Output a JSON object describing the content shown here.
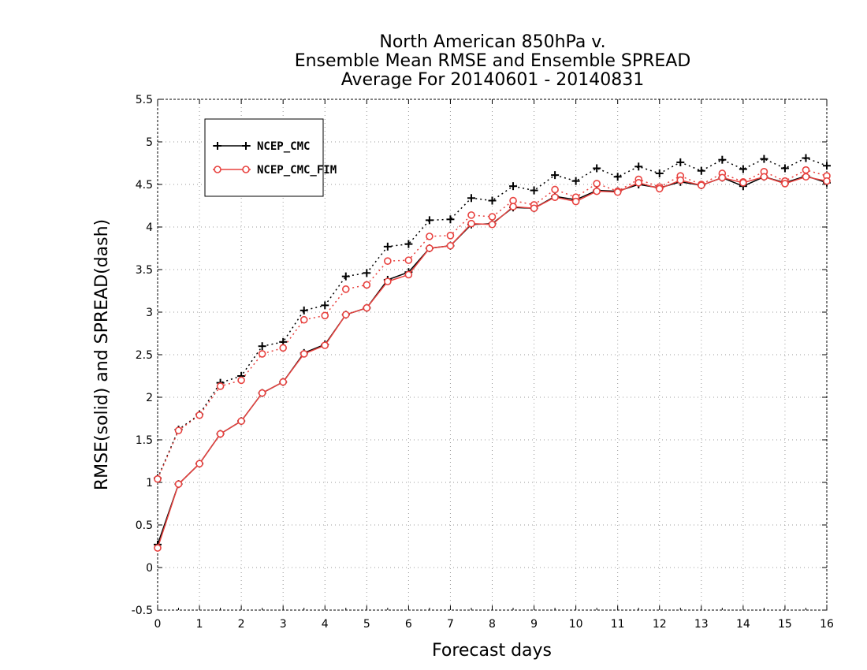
{
  "chart_data": {
    "type": "line",
    "title": [
      "North American 850hPa v.",
      "Ensemble Mean RMSE and Ensemble SPREAD",
      "Average For 20140601 - 20140831"
    ],
    "xlabel": "Forecast days",
    "ylabel": "RMSE(solid) and SPREAD(dash)",
    "xlim": [
      0,
      16
    ],
    "ylim": [
      -0.5,
      5.5
    ],
    "xticks": [
      "0",
      "1",
      "2",
      "3",
      "4",
      "5",
      "6",
      "7",
      "8",
      "9",
      "10",
      "11",
      "12",
      "13",
      "14",
      "15",
      "16"
    ],
    "yticks": [
      "-0.5",
      "0",
      "0.5",
      "1",
      "1.5",
      "2",
      "2.5",
      "3",
      "3.5",
      "4",
      "4.5",
      "5",
      "5.5"
    ],
    "ytick_values": [
      -0.5,
      0,
      0.5,
      1,
      1.5,
      2,
      2.5,
      3,
      3.5,
      4,
      4.5,
      5,
      5.5
    ],
    "grid": true,
    "legend_position": "top-left",
    "x": [
      0,
      0.5,
      1,
      1.5,
      2,
      2.5,
      3,
      3.5,
      4,
      4.5,
      5,
      5.5,
      6,
      6.5,
      7,
      7.5,
      8,
      8.5,
      9,
      9.5,
      10,
      10.5,
      11,
      11.5,
      12,
      12.5,
      13,
      13.5,
      14,
      14.5,
      15,
      15.5,
      16
    ],
    "series": [
      {
        "name": "NCEP_CMC",
        "color": "#000000",
        "marker": "plus",
        "rmse": [
          0.27,
          0.98,
          1.22,
          1.57,
          1.72,
          2.05,
          2.18,
          2.52,
          2.62,
          2.97,
          3.05,
          3.38,
          3.47,
          3.75,
          3.78,
          4.03,
          4.04,
          4.23,
          4.22,
          4.36,
          4.32,
          4.43,
          4.42,
          4.5,
          4.46,
          4.53,
          4.49,
          4.58,
          4.48,
          4.59,
          4.52,
          4.6,
          4.52
        ],
        "spread": [
          1.05,
          1.62,
          1.8,
          2.17,
          2.25,
          2.6,
          2.65,
          3.02,
          3.08,
          3.42,
          3.46,
          3.77,
          3.8,
          4.08,
          4.09,
          4.34,
          4.31,
          4.48,
          4.43,
          4.61,
          4.54,
          4.69,
          4.59,
          4.71,
          4.63,
          4.76,
          4.66,
          4.79,
          4.68,
          4.8,
          4.69,
          4.81,
          4.72
        ]
      },
      {
        "name": "NCEP_CMC_FIM",
        "color": "#e8423f",
        "marker": "circle",
        "rmse": [
          0.23,
          0.98,
          1.22,
          1.57,
          1.72,
          2.05,
          2.18,
          2.51,
          2.61,
          2.97,
          3.05,
          3.36,
          3.44,
          3.75,
          3.78,
          4.04,
          4.03,
          4.24,
          4.22,
          4.35,
          4.3,
          4.42,
          4.41,
          4.52,
          4.45,
          4.55,
          4.49,
          4.58,
          4.52,
          4.59,
          4.51,
          4.59,
          4.54
        ],
        "spread": [
          1.04,
          1.61,
          1.79,
          2.13,
          2.2,
          2.51,
          2.58,
          2.91,
          2.96,
          3.27,
          3.32,
          3.6,
          3.61,
          3.89,
          3.9,
          4.14,
          4.12,
          4.31,
          4.26,
          4.44,
          4.35,
          4.51,
          4.42,
          4.56,
          4.47,
          4.6,
          4.5,
          4.63,
          4.53,
          4.65,
          4.54,
          4.67,
          4.6
        ]
      }
    ]
  }
}
